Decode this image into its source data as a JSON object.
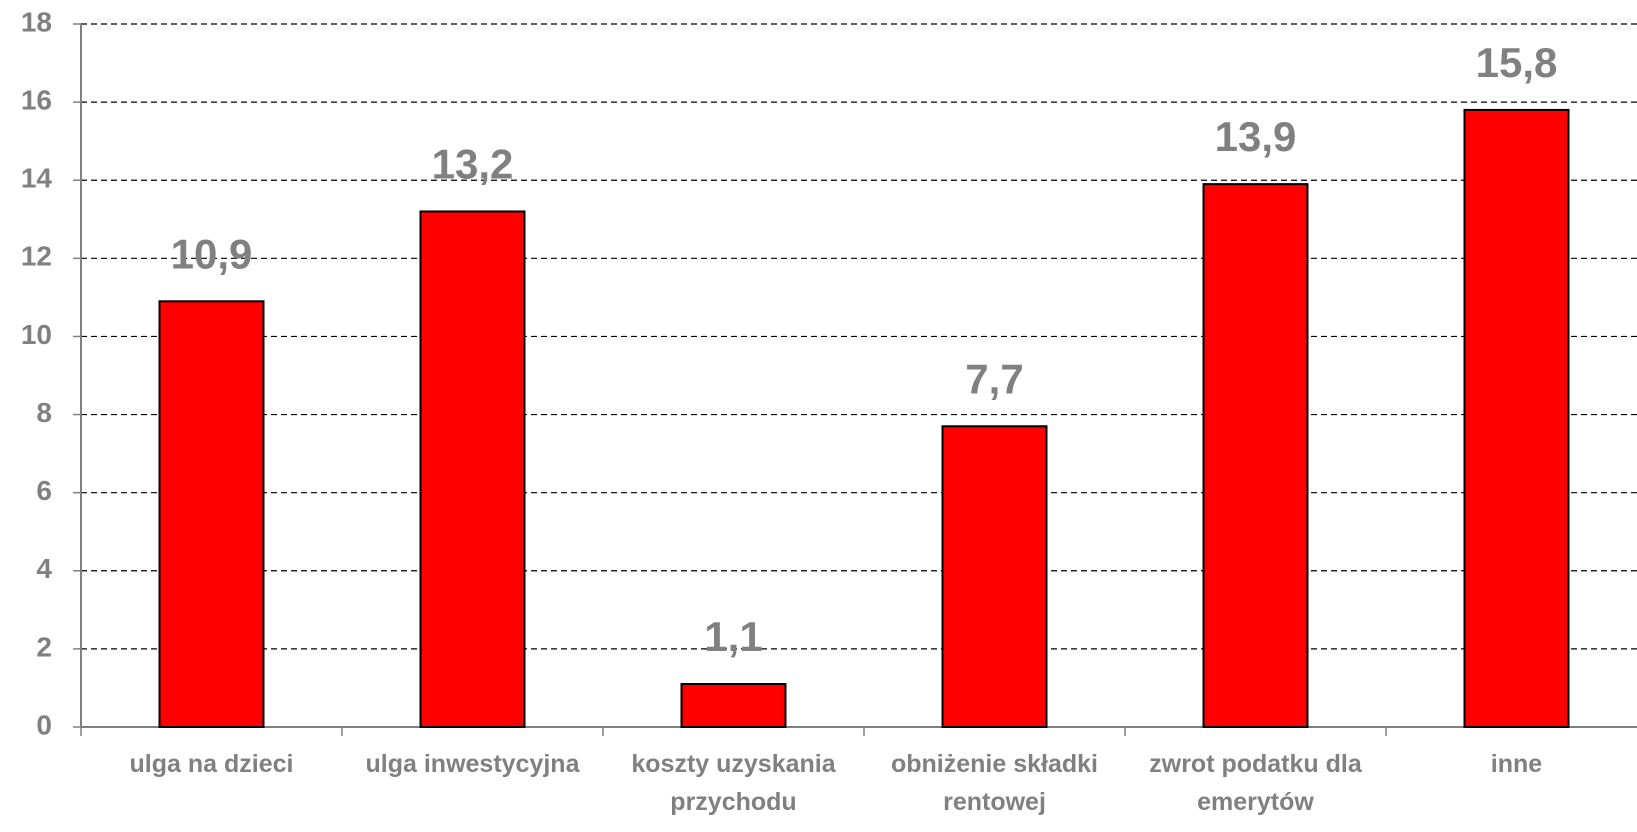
{
  "chart_data": {
    "type": "bar",
    "categories": [
      "ulga na dzieci",
      "ulga inwestycyjna",
      "koszty uzyskania przychodu",
      "obniżenie składki rentowej",
      "zwrot podatku dla emerytów",
      "inne"
    ],
    "values": [
      10.9,
      13.2,
      1.1,
      7.7,
      13.9,
      15.8
    ],
    "value_labels": [
      "10,9",
      "13,2",
      "1,1",
      "7,7",
      "13,9",
      "15,8"
    ],
    "color": "#ff0000",
    "ylim": [
      0,
      18
    ],
    "yticks": [
      0,
      2,
      4,
      6,
      8,
      10,
      12,
      14,
      16,
      18
    ],
    "grid": true
  }
}
